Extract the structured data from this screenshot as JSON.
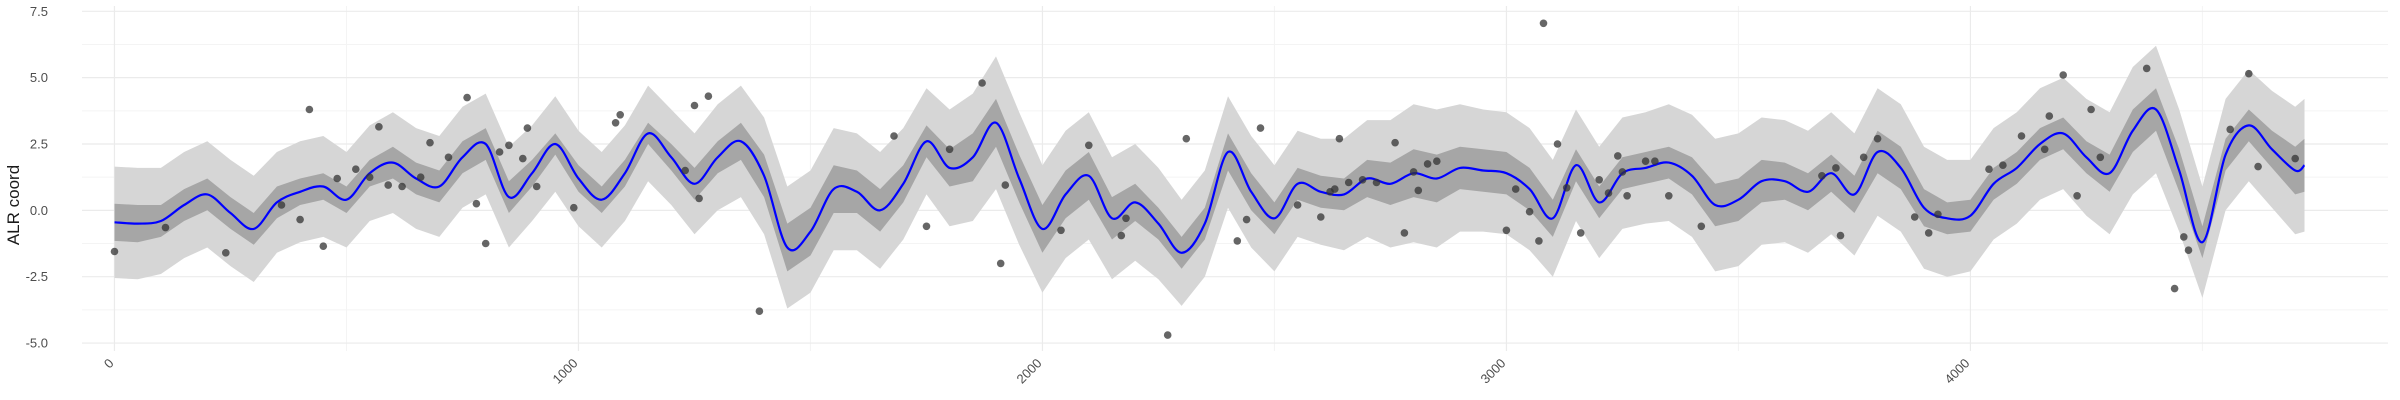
{
  "chart_data": {
    "type": "line",
    "title": "",
    "xlabel": "",
    "ylabel": "ALR coord",
    "xlim": [
      -70,
      4900
    ],
    "ylim": [
      -5.3,
      7.7
    ],
    "x_ticks": [
      0,
      1000,
      2000,
      3000,
      4000
    ],
    "x_tick_labels": [
      "0",
      "1000",
      "2000",
      "3000",
      "4000"
    ],
    "y_ticks": [
      -5.0,
      -2.5,
      0.0,
      2.5,
      5.0,
      7.5
    ],
    "y_tick_labels": [
      "-5.0",
      "-2.5",
      "0.0",
      "2.5",
      "5.0",
      "7.5"
    ],
    "grid": true,
    "colors": {
      "mean_line": "#0000ff",
      "inner_band": "#a6a6a6",
      "outer_band": "#d6d6d6",
      "points": "#333333",
      "grid_major": "#ebebeb",
      "grid_minor": "#f4f4f4"
    },
    "mean_x": [
      0,
      50,
      100,
      150,
      200,
      250,
      300,
      350,
      400,
      450,
      500,
      550,
      600,
      650,
      700,
      750,
      800,
      850,
      900,
      950,
      1000,
      1050,
      1100,
      1150,
      1200,
      1250,
      1300,
      1350,
      1400,
      1450,
      1500,
      1550,
      1600,
      1650,
      1700,
      1750,
      1800,
      1850,
      1900,
      1950,
      2000,
      2050,
      2100,
      2150,
      2200,
      2250,
      2300,
      2350,
      2400,
      2450,
      2500,
      2550,
      2600,
      2650,
      2700,
      2750,
      2800,
      2850,
      2900,
      2950,
      3000,
      3050,
      3100,
      3150,
      3200,
      3250,
      3300,
      3350,
      3400,
      3450,
      3500,
      3550,
      3600,
      3650,
      3700,
      3750,
      3800,
      3850,
      3900,
      3950,
      4000,
      4050,
      4100,
      4150,
      4200,
      4250,
      4300,
      4350,
      4400,
      4450,
      4500,
      4550,
      4600,
      4650,
      4700,
      4720
    ],
    "mean_y": [
      -0.45,
      -0.5,
      -0.4,
      0.2,
      0.6,
      -0.1,
      -0.7,
      0.3,
      0.7,
      0.9,
      0.4,
      1.4,
      1.8,
      1.2,
      0.9,
      2.0,
      2.5,
      0.5,
      1.4,
      2.5,
      1.2,
      0.4,
      1.4,
      2.9,
      2.0,
      1.0,
      2.0,
      2.6,
      1.3,
      -1.4,
      -0.8,
      0.8,
      0.7,
      0.0,
      1.0,
      2.6,
      1.6,
      2.0,
      3.3,
      1.2,
      -0.7,
      0.6,
      1.3,
      -0.3,
      0.3,
      -0.5,
      -1.6,
      -0.5,
      2.2,
      0.7,
      -0.3,
      1.0,
      0.7,
      0.6,
      1.2,
      1.0,
      1.4,
      1.2,
      1.6,
      1.5,
      1.4,
      0.8,
      -0.3,
      1.7,
      0.3,
      1.4,
      1.6,
      1.8,
      1.3,
      0.2,
      0.4,
      1.1,
      1.1,
      0.7,
      1.4,
      0.6,
      2.2,
      1.6,
      0.1,
      -0.3,
      -0.2,
      1.0,
      1.6,
      2.5,
      2.9,
      2.0,
      1.4,
      3.0,
      3.8,
      1.5,
      -1.2,
      2.1,
      3.2,
      2.3,
      1.5,
      1.7
    ],
    "inner_band_width": [
      0.7,
      0.7,
      0.6,
      0.6,
      0.6,
      0.6,
      0.6,
      0.6,
      0.5,
      0.5,
      0.5,
      0.5,
      0.6,
      0.6,
      0.6,
      0.6,
      0.6,
      0.6,
      0.5,
      0.4,
      0.5,
      0.5,
      0.5,
      0.4,
      0.5,
      0.6,
      0.6,
      0.7,
      0.8,
      0.9,
      0.9,
      0.9,
      0.8,
      0.8,
      0.7,
      0.6,
      0.7,
      0.9,
      0.9,
      0.9,
      0.9,
      0.9,
      0.9,
      0.8,
      0.7,
      0.6,
      0.6,
      0.6,
      0.7,
      0.7,
      0.6,
      0.6,
      0.6,
      0.6,
      0.7,
      0.8,
      0.9,
      0.9,
      0.8,
      0.8,
      0.8,
      0.8,
      0.7,
      0.6,
      0.6,
      0.6,
      0.6,
      0.6,
      0.7,
      0.8,
      0.8,
      0.8,
      0.7,
      0.7,
      0.7,
      0.7,
      0.8,
      0.8,
      0.7,
      0.6,
      0.6,
      0.6,
      0.6,
      0.6,
      0.6,
      0.6,
      0.7,
      0.8,
      0.8,
      0.8,
      0.6,
      0.6,
      0.6,
      0.7,
      0.9,
      1.0
    ],
    "outer_band_width": [
      2.1,
      2.1,
      2.0,
      2.0,
      2.0,
      2.0,
      2.0,
      1.9,
      1.9,
      1.9,
      1.8,
      1.8,
      1.9,
      1.9,
      1.9,
      1.9,
      1.9,
      1.9,
      1.8,
      1.8,
      1.8,
      1.8,
      1.8,
      1.8,
      1.8,
      1.9,
      2.0,
      2.1,
      2.2,
      2.3,
      2.3,
      2.3,
      2.2,
      2.2,
      2.1,
      2.0,
      2.2,
      2.4,
      2.5,
      2.5,
      2.4,
      2.4,
      2.4,
      2.3,
      2.2,
      2.1,
      2.0,
      2.0,
      2.1,
      2.1,
      2.0,
      2.0,
      2.0,
      2.1,
      2.2,
      2.4,
      2.6,
      2.6,
      2.4,
      2.3,
      2.3,
      2.3,
      2.2,
      2.1,
      2.1,
      2.1,
      2.1,
      2.2,
      2.3,
      2.5,
      2.5,
      2.4,
      2.3,
      2.3,
      2.3,
      2.3,
      2.4,
      2.4,
      2.3,
      2.2,
      2.1,
      2.1,
      2.1,
      2.1,
      2.1,
      2.2,
      2.3,
      2.4,
      2.4,
      2.3,
      2.1,
      2.1,
      2.1,
      2.2,
      2.4,
      2.5
    ],
    "points": [
      [
        0,
        -1.55
      ],
      [
        110,
        -0.65
      ],
      [
        240,
        -1.6
      ],
      [
        360,
        0.2
      ],
      [
        400,
        -0.35
      ],
      [
        420,
        3.8
      ],
      [
        450,
        -1.35
      ],
      [
        480,
        1.2
      ],
      [
        520,
        1.55
      ],
      [
        550,
        1.25
      ],
      [
        570,
        3.15
      ],
      [
        590,
        0.95
      ],
      [
        620,
        0.9
      ],
      [
        660,
        1.25
      ],
      [
        680,
        2.55
      ],
      [
        720,
        2.0
      ],
      [
        760,
        4.25
      ],
      [
        780,
        0.25
      ],
      [
        800,
        -1.25
      ],
      [
        830,
        2.2
      ],
      [
        850,
        2.45
      ],
      [
        880,
        1.95
      ],
      [
        890,
        3.1
      ],
      [
        910,
        0.9
      ],
      [
        990,
        0.1
      ],
      [
        1080,
        3.3
      ],
      [
        1090,
        3.6
      ],
      [
        1230,
        1.5
      ],
      [
        1250,
        3.95
      ],
      [
        1260,
        0.45
      ],
      [
        1280,
        4.3
      ],
      [
        1390,
        -3.8
      ],
      [
        1680,
        2.8
      ],
      [
        1750,
        -0.6
      ],
      [
        1800,
        2.3
      ],
      [
        1870,
        4.8
      ],
      [
        1910,
        -2.0
      ],
      [
        1920,
        0.95
      ],
      [
        2040,
        -0.75
      ],
      [
        2100,
        2.45
      ],
      [
        2170,
        -0.95
      ],
      [
        2180,
        -0.3
      ],
      [
        2270,
        -4.7
      ],
      [
        2310,
        2.7
      ],
      [
        2420,
        -1.15
      ],
      [
        2440,
        -0.35
      ],
      [
        2470,
        3.1
      ],
      [
        2550,
        0.2
      ],
      [
        2600,
        -0.25
      ],
      [
        2620,
        0.7
      ],
      [
        2630,
        0.8
      ],
      [
        2640,
        2.7
      ],
      [
        2660,
        1.05
      ],
      [
        2690,
        1.15
      ],
      [
        2720,
        1.05
      ],
      [
        2760,
        2.55
      ],
      [
        2780,
        -0.85
      ],
      [
        2800,
        1.45
      ],
      [
        2810,
        0.75
      ],
      [
        2830,
        1.75
      ],
      [
        2850,
        1.85
      ],
      [
        3000,
        -0.75
      ],
      [
        3020,
        0.8
      ],
      [
        3050,
        -0.05
      ],
      [
        3080,
        7.05
      ],
      [
        3070,
        -1.15
      ],
      [
        3110,
        2.5
      ],
      [
        3130,
        0.85
      ],
      [
        3160,
        -0.85
      ],
      [
        3200,
        1.15
      ],
      [
        3220,
        0.65
      ],
      [
        3240,
        2.05
      ],
      [
        3250,
        1.45
      ],
      [
        3260,
        0.55
      ],
      [
        3300,
        1.85
      ],
      [
        3320,
        1.85
      ],
      [
        3350,
        0.55
      ],
      [
        3420,
        -0.6
      ],
      [
        3680,
        1.3
      ],
      [
        3710,
        1.6
      ],
      [
        3720,
        -0.95
      ],
      [
        3770,
        2.0
      ],
      [
        3800,
        2.7
      ],
      [
        3880,
        -0.25
      ],
      [
        3910,
        -0.85
      ],
      [
        3930,
        -0.15
      ],
      [
        4040,
        1.55
      ],
      [
        4070,
        1.7
      ],
      [
        4110,
        2.8
      ],
      [
        4160,
        2.3
      ],
      [
        4170,
        3.55
      ],
      [
        4200,
        5.1
      ],
      [
        4230,
        0.55
      ],
      [
        4260,
        3.8
      ],
      [
        4280,
        2.0
      ],
      [
        4380,
        5.35
      ],
      [
        4440,
        -2.95
      ],
      [
        4460,
        -1.0
      ],
      [
        4470,
        -1.5
      ],
      [
        4560,
        3.05
      ],
      [
        4600,
        5.15
      ],
      [
        4620,
        1.65
      ],
      [
        4700,
        1.95
      ]
    ]
  }
}
